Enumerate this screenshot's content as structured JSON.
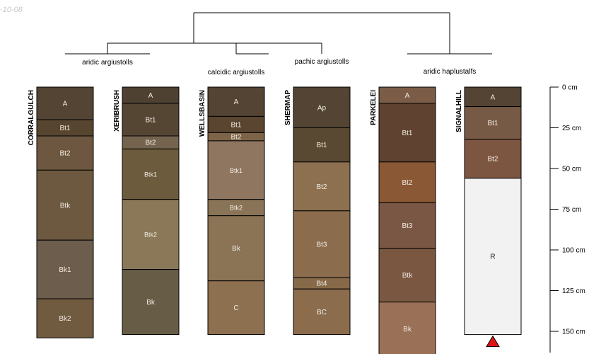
{
  "stamp": "-10-08",
  "chart_data": {
    "type": "soil-profile-sketch",
    "depth_unit": "cm",
    "depth_range": [
      0,
      165
    ],
    "depth_ticks": [
      {
        "value": 0,
        "label": "0 cm"
      },
      {
        "value": 25,
        "label": "25 cm"
      },
      {
        "value": 50,
        "label": "50 cm"
      },
      {
        "value": 75,
        "label": "75 cm"
      },
      {
        "value": 100,
        "label": "100 cm"
      },
      {
        "value": 125,
        "label": "125 cm"
      },
      {
        "value": 150,
        "label": "150 cm"
      }
    ],
    "groups": [
      {
        "name": "aridic argiustolls",
        "profiles": [
          "CORRALGULCH",
          "XERIBRUSH"
        ]
      },
      {
        "name": "calcidic argiustolls",
        "profiles": [
          "WELLSBASIN"
        ]
      },
      {
        "name": "pachic argiustolls",
        "profiles": [
          "SHERMAP"
        ]
      },
      {
        "name": "aridic haplustalfs",
        "profiles": [
          "PARKELEI",
          "SIGNALHILL"
        ]
      }
    ],
    "profiles": [
      {
        "name": "CORRALGULCH",
        "horizons": [
          {
            "name": "A",
            "top": 0,
            "bottom": 20,
            "color": "#534434"
          },
          {
            "name": "Bt1",
            "top": 20,
            "bottom": 30,
            "color": "#574530"
          },
          {
            "name": "Bt2",
            "top": 30,
            "bottom": 51,
            "color": "#6d5740"
          },
          {
            "name": "Btk",
            "top": 51,
            "bottom": 94,
            "color": "#6d5940"
          },
          {
            "name": "Bk1",
            "top": 94,
            "bottom": 130,
            "color": "#6d5d4c"
          },
          {
            "name": "Bk2",
            "top": 130,
            "bottom": 154,
            "color": "#705a40"
          }
        ]
      },
      {
        "name": "XERIBRUSH",
        "horizons": [
          {
            "name": "A",
            "top": 0,
            "bottom": 10,
            "color": "#4e4132"
          },
          {
            "name": "Bt1",
            "top": 10,
            "bottom": 30,
            "color": "#554634"
          },
          {
            "name": "Bt2",
            "top": 30,
            "bottom": 38,
            "color": "#74644f"
          },
          {
            "name": "Btk1",
            "top": 38,
            "bottom": 69,
            "color": "#6c5b3d"
          },
          {
            "name": "Btk2",
            "top": 69,
            "bottom": 112,
            "color": "#8a7858"
          },
          {
            "name": "Bk",
            "top": 112,
            "bottom": 152,
            "color": "#675c46"
          }
        ]
      },
      {
        "name": "WELLSBASIN",
        "horizons": [
          {
            "name": "A",
            "top": 0,
            "bottom": 18,
            "color": "#534434"
          },
          {
            "name": "Bt1",
            "top": 18,
            "bottom": 28,
            "color": "#5a4530"
          },
          {
            "name": "Bt2",
            "top": 28,
            "bottom": 33,
            "color": "#7d6449"
          },
          {
            "name": "Btk1",
            "top": 33,
            "bottom": 69,
            "color": "#8e7660"
          },
          {
            "name": "Btk2",
            "top": 69,
            "bottom": 79,
            "color": "#8a7458"
          },
          {
            "name": "Bk",
            "top": 79,
            "bottom": 119,
            "color": "#8b7356"
          },
          {
            "name": "C",
            "top": 119,
            "bottom": 152,
            "color": "#8d7050"
          }
        ]
      },
      {
        "name": "SHERMAP",
        "horizons": [
          {
            "name": "Ap",
            "top": 0,
            "bottom": 25,
            "color": "#534434"
          },
          {
            "name": "Bt1",
            "top": 25,
            "bottom": 46,
            "color": "#594832"
          },
          {
            "name": "Bt2",
            "top": 46,
            "bottom": 76,
            "color": "#8d7050"
          },
          {
            "name": "Bt3",
            "top": 76,
            "bottom": 117,
            "color": "#8b6c4d"
          },
          {
            "name": "Bt4",
            "top": 117,
            "bottom": 124,
            "color": "#876a4a"
          },
          {
            "name": "BC",
            "top": 124,
            "bottom": 152,
            "color": "#8b6d4d"
          }
        ]
      },
      {
        "name": "PARKELEI",
        "horizons": [
          {
            "name": "A",
            "top": 0,
            "bottom": 10,
            "color": "#7b5d47"
          },
          {
            "name": "Bt1",
            "top": 10,
            "bottom": 46,
            "color": "#5f4230"
          },
          {
            "name": "Bt2",
            "top": 46,
            "bottom": 71,
            "color": "#8a5834"
          },
          {
            "name": "Bt3",
            "top": 71,
            "bottom": 99,
            "color": "#7a5644"
          },
          {
            "name": "Btk",
            "top": 99,
            "bottom": 132,
            "color": "#7a5740"
          },
          {
            "name": "Bk",
            "top": 132,
            "bottom": 165,
            "color": "#9a7056"
          }
        ]
      },
      {
        "name": "SIGNALHILL",
        "horizons": [
          {
            "name": "A",
            "top": 0,
            "bottom": 12,
            "color": "#534434"
          },
          {
            "name": "Bt1",
            "top": 12,
            "bottom": 32,
            "color": "#775a45"
          },
          {
            "name": "Bt2",
            "top": 32,
            "bottom": 56,
            "color": "#7d5641"
          },
          {
            "name": "R",
            "top": 56,
            "bottom": 152,
            "color": "#f2f2f2"
          }
        ]
      }
    ],
    "markers": [
      {
        "profile": "SIGNALHILL",
        "depth": 152,
        "shape": "triangle",
        "color": "#e01414"
      }
    ]
  }
}
